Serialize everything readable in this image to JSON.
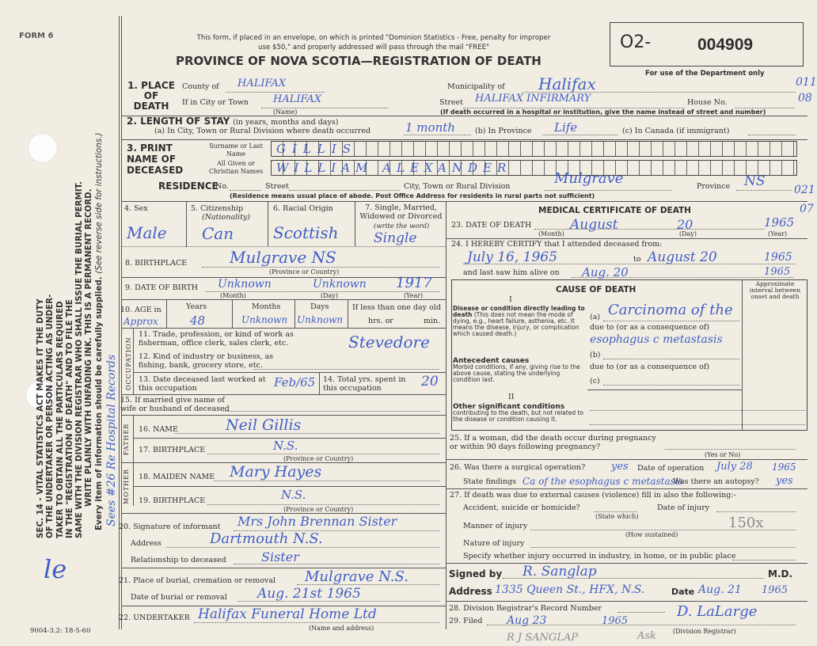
{
  "header": {
    "form_no": "FORM 6",
    "notice_line1": "This form, if placed in an envelope, on which is printed \"Dominion Statistics - Free, penalty for improper",
    "notice_line2": "use $50,\" and properly addressed will pass through the mail \"FREE\"",
    "title": "PROVINCE OF NOVA SCOTIA—REGISTRATION OF DEATH",
    "serial_prefix": "O2-",
    "serial_no": "004909",
    "dept_use": "For use of the Department only",
    "codes": [
      "011",
      "08",
      "021",
      "07"
    ]
  },
  "margin": {
    "sec14_lines": [
      "SEC. 14 - VITAL STATISTICS ACT MAKES IT THE DUTY",
      "OF THE UNDERTAKER OR PERSON ACTING AS UNDER-",
      "TAKER TO OBTAIN ALL THE PARTICULARS REQUIRED",
      "IN THE \"REGISTRATION OF DEATH\" AND TO FILE THE",
      "SAME WITH THE DIVISION REGISTRAR WHO SHALL ISSUE THE BURIAL PERMIT.",
      "WRITE PLAINLY WITH UNFADING INK. THIS IS A PERMANENT RECORD."
    ],
    "every_item": "Every item of information should be carefully supplied.",
    "see_reverse": "(See reverse side for instructions.)",
    "annotation": "Sees #26 Re Hospital Records",
    "initial": "le",
    "print_code": "9004-3.2: 18-5-60"
  },
  "place_of_death": {
    "label": "1. PLACE OF DEATH",
    "county_label": "County of",
    "county": "HALIFAX",
    "municipality_label": "Municipality of",
    "municipality": "Halifax",
    "city_label": "If in City or Town",
    "city": "HALIFAX",
    "name_caption": "(Name)",
    "street_label": "Street",
    "street": "HALIFAX INFIRMARY",
    "house_label": "House No.",
    "hospital_note": "(If death occurred in a hospital or institution, give the name instead of street and number)"
  },
  "length_of_stay": {
    "label": "2. LENGTH OF STAY",
    "sub": "(in years, months and days)",
    "a_label": "(a) In City, Town or Rural Division where death occurred",
    "a": "1 month",
    "b_label": "(b) In Province",
    "b": "Life",
    "c_label": "(c) In Canada (if immigrant)"
  },
  "deceased": {
    "label": "3. PRINT NAME OF DECEASED",
    "surname_label": "Surname or Last Name",
    "surname": "GILLIS",
    "given_label": "All Given or Christian Names",
    "given": "WILLIAM ALEXANDER"
  },
  "residence": {
    "label": "RESIDENCE",
    "no_label": "No.",
    "street_label": "Street",
    "city_label": "City, Town or Rural Division",
    "city": "Mulgrave",
    "province_label": "Province",
    "province": "NS",
    "note": "(Residence means usual place of abode. Post Office Address for residents in rural parts not sufficient)"
  },
  "personal": {
    "sex_label": "4. Sex",
    "sex": "Male",
    "citizenship_label": "5. Citizenship",
    "citizenship_sub": "(Nationality)",
    "citizenship": "Can",
    "racial_label": "6. Racial Origin",
    "racial": "Scottish",
    "marital_label": "7. Single, Married, Widowed or Divorced",
    "marital_sub": "(write the word)",
    "marital": "Single",
    "birthplace_label": "8. BIRTHPLACE",
    "birthplace": "Mulgrave NS",
    "prov_caption": "(Province or Country)",
    "dob_label": "9. DATE OF BIRTH",
    "dob_month": "Unknown",
    "dob_day": "Unknown",
    "dob_year": "1917",
    "month_caption": "(Month)",
    "day_caption": "(Day)",
    "year_caption": "(Year)",
    "age_label": "10. AGE in",
    "years_label": "Years",
    "months_label": "Months",
    "days_label": "Days",
    "less_label": "If less than one day old",
    "hrs_label": "hrs. or",
    "min_label": "min.",
    "age_years": "48",
    "age_months": "Unknown",
    "age_days": "Unknown",
    "age_mark": "Approx"
  },
  "occupation": {
    "side": "OCCUPATION",
    "q11": "11. Trade, profession, or kind of work as fisherman, office clerk, sales clerk, etc.",
    "trade": "Stevedore",
    "q12": "12. Kind of industry or business, as fishing, bank, grocery store, etc.",
    "q13": "13. Date deceased last worked at this occupation",
    "last_worked": "Feb/65",
    "q14": "14. Total yrs. spent in this occupation",
    "years": "20"
  },
  "family": {
    "q15": "15. If married give name of wife or husband of deceased",
    "father_side": "FATHER",
    "q16": "16. NAME",
    "father_name": "Neil Gillis",
    "q17": "17. BIRTHPLACE",
    "father_birthplace": "N.S.",
    "mother_side": "MOTHER",
    "q18": "18. MAIDEN NAME",
    "mother_name": "Mary Hayes",
    "q19": "19. BIRTHPLACE",
    "mother_birthplace": "N.S."
  },
  "informant": {
    "q20": "20. Signature of informant",
    "signature": "Mrs John Brennan Sister",
    "address_label": "Address",
    "address": "Dartmouth N.S.",
    "relationship_label": "Relationship to deceased",
    "relationship": "Sister",
    "q21": "21. Place of burial, cremation or removal",
    "burial_place": "Mulgrave N.S.",
    "burial_date_label": "Date of burial or removal",
    "burial_date": "Aug. 21st 1965",
    "q22": "22. UNDERTAKER",
    "undertaker": "Halifax Funeral Home Ltd",
    "undertaker_caption": "(Name and address)"
  },
  "medical": {
    "title": "MEDICAL CERTIFICATE OF DEATH",
    "q23": "23. DATE OF DEATH",
    "death_month": "August",
    "death_day": "20",
    "death_year": "1965",
    "q24": "24. I HEREBY CERTIFY that I attended deceased from:",
    "from": "July 16, 1965",
    "to_label": "to",
    "to": "August 20",
    "to_year": "1965",
    "last_saw_label": "and last saw him alive on",
    "last_saw": "Aug. 20",
    "last_saw_year": "1965",
    "cause_title": "CAUSE OF DEATH",
    "roman1": "I",
    "roman2": "II",
    "disease_label": "Disease or condition directly leading to death",
    "disease_desc": "(This does not mean the mode of dying, e.g., heart failure, asthenia, etc. It means the disease, injury, or complication which caused death.)",
    "antecedent_label": "Antecedent causes",
    "antecedent_desc": "Morbid conditions, if any, giving rise to the above cause, stating the underlying condition last.",
    "other_label": "Other significant conditions",
    "other_desc": "contributing to the death, but not related to the disease or condition causing it.",
    "interval_label": "Approximate interval between onset and death",
    "a_label": "(a)",
    "cause_a": "Carcinoma of the",
    "due_to": "due to (or as a consequence of)",
    "cause_a2": "esophagus c metastasis",
    "b_label": "(b)",
    "c_label": "(c)"
  },
  "q25": {
    "label": "25. If a woman, did the death occur during pregnancy or within 90 days following pregnancy?",
    "caption": "(Yes or No)"
  },
  "q26": {
    "label": "26. Was there a surgical operation?",
    "value": "yes",
    "date_label": "Date of operation",
    "date": "July 28",
    "year": "1965",
    "findings_label": "State findings",
    "findings": "Ca of the esophagus c metastasis",
    "autopsy_label": "Was there an autopsy?",
    "autopsy": "yes"
  },
  "q27": {
    "label": "27. If death was due to external causes (violence) fill in also the following:-",
    "accident_label": "Accident, suicide or homicide?",
    "state_caption": "(State which)",
    "injury_date_label": "Date of injury",
    "manner_label": "Manner of injury",
    "how_caption": "(How sustained)",
    "nature_label": "Nature of injury",
    "specify_label": "Specify whether injury occurred in industry, in home, or in public place",
    "stamp": "150x"
  },
  "signature": {
    "signed_label": "Signed by",
    "signed": "R. Sanglap",
    "md": "M.D.",
    "address_label": "Address",
    "address": "1335 Queen St., HFX, N.S.",
    "date_label": "Date",
    "date": "Aug. 21",
    "year": "1965"
  },
  "registrar": {
    "q28": "28. Division Registrar's Record Number",
    "q29": "29. Filed",
    "filed": "Aug 23",
    "filed_year": "1965",
    "registrar_sig": "D. LaLarge",
    "caption": "(Division Registrar)",
    "pencil": "R J SANGLAP",
    "pencil2": "Ask"
  }
}
